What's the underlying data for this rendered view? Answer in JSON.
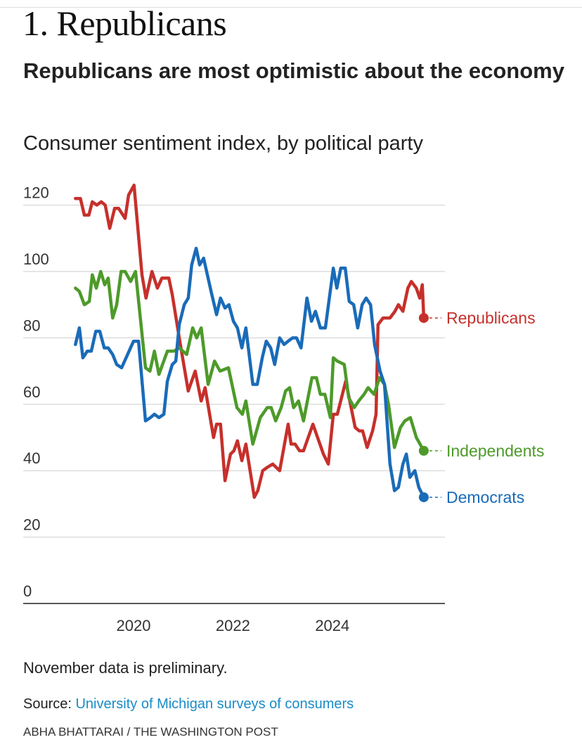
{
  "header": {
    "title": "1. Republicans",
    "headline": "Republicans are most optimistic about the economy"
  },
  "chart_data": {
    "type": "line",
    "title": "Consumer sentiment index, by political party",
    "xlabel": "",
    "ylabel": "",
    "ylim": [
      0,
      120
    ],
    "yticks": [
      "0",
      "20",
      "40",
      "60",
      "80",
      "100",
      "120"
    ],
    "xticks": [
      "2020",
      "2022",
      "2024"
    ],
    "grid": true,
    "series": [
      {
        "name": "Republicans",
        "color": "#c6302b",
        "points": [
          [
            2018.83,
            122
          ],
          [
            2018.93,
            122
          ],
          [
            2019.01,
            117
          ],
          [
            2019.1,
            117
          ],
          [
            2019.17,
            121
          ],
          [
            2019.26,
            120
          ],
          [
            2019.35,
            121
          ],
          [
            2019.43,
            120
          ],
          [
            2019.52,
            113
          ],
          [
            2019.62,
            119
          ],
          [
            2019.7,
            119
          ],
          [
            2019.83,
            116
          ],
          [
            2019.9,
            123
          ],
          [
            2020.01,
            126
          ],
          [
            2020.17,
            99
          ],
          [
            2020.25,
            92
          ],
          [
            2020.37,
            100
          ],
          [
            2020.48,
            95
          ],
          [
            2020.57,
            98
          ],
          [
            2020.71,
            98
          ],
          [
            2020.78,
            93
          ],
          [
            2020.93,
            79
          ],
          [
            2021.1,
            64
          ],
          [
            2021.24,
            70
          ],
          [
            2021.36,
            61
          ],
          [
            2021.44,
            65
          ],
          [
            2021.61,
            50
          ],
          [
            2021.67,
            54
          ],
          [
            2021.75,
            54
          ],
          [
            2021.84,
            37
          ],
          [
            2021.95,
            45
          ],
          [
            2022.02,
            46
          ],
          [
            2022.09,
            49
          ],
          [
            2022.18,
            43
          ],
          [
            2022.26,
            48
          ],
          [
            2022.43,
            32
          ],
          [
            2022.5,
            34
          ],
          [
            2022.6,
            40
          ],
          [
            2022.69,
            41
          ],
          [
            2022.8,
            42
          ],
          [
            2022.94,
            40
          ],
          [
            2023.11,
            54
          ],
          [
            2023.17,
            48
          ],
          [
            2023.25,
            48
          ],
          [
            2023.34,
            46
          ],
          [
            2023.42,
            46
          ],
          [
            2023.61,
            54
          ],
          [
            2023.82,
            45
          ],
          [
            2023.92,
            42
          ],
          [
            2024.02,
            57
          ],
          [
            2024.1,
            57
          ],
          [
            2024.27,
            67
          ],
          [
            2024.46,
            53
          ],
          [
            2024.54,
            52
          ],
          [
            2024.61,
            52
          ],
          [
            2024.7,
            47
          ],
          [
            2024.81,
            52
          ],
          [
            2024.88,
            57
          ],
          [
            2024.92,
            84
          ],
          [
            2025.02,
            86
          ],
          [
            2025.16,
            86
          ],
          [
            2025.26,
            88
          ],
          [
            2025.33,
            90
          ],
          [
            2025.42,
            88
          ],
          [
            2025.52,
            95
          ],
          [
            2025.59,
            97
          ],
          [
            2025.69,
            95
          ],
          [
            2025.76,
            92
          ],
          [
            2025.81,
            96
          ],
          [
            2025.84,
            86
          ]
        ]
      },
      {
        "name": "Independents",
        "color": "#4d9a2a",
        "points": [
          [
            2018.83,
            95
          ],
          [
            2018.91,
            94
          ],
          [
            2019.01,
            90
          ],
          [
            2019.11,
            91
          ],
          [
            2019.17,
            99
          ],
          [
            2019.25,
            95
          ],
          [
            2019.34,
            100
          ],
          [
            2019.42,
            96
          ],
          [
            2019.49,
            98
          ],
          [
            2019.58,
            86
          ],
          [
            2019.66,
            90
          ],
          [
            2019.75,
            100
          ],
          [
            2019.83,
            100
          ],
          [
            2019.94,
            97
          ],
          [
            2020.04,
            100
          ],
          [
            2020.24,
            71
          ],
          [
            2020.33,
            70
          ],
          [
            2020.42,
            76
          ],
          [
            2020.51,
            69
          ],
          [
            2020.68,
            76
          ],
          [
            2020.81,
            76
          ],
          [
            2020.92,
            77
          ],
          [
            2021.07,
            75
          ],
          [
            2021.19,
            83
          ],
          [
            2021.27,
            80
          ],
          [
            2021.36,
            83
          ],
          [
            2021.5,
            66
          ],
          [
            2021.63,
            73
          ],
          [
            2021.74,
            70
          ],
          [
            2021.91,
            71
          ],
          [
            2022.08,
            59
          ],
          [
            2022.19,
            57
          ],
          [
            2022.26,
            61
          ],
          [
            2022.4,
            48
          ],
          [
            2022.55,
            56
          ],
          [
            2022.69,
            59
          ],
          [
            2022.77,
            59
          ],
          [
            2022.86,
            55
          ],
          [
            2022.97,
            59
          ],
          [
            2023.06,
            64
          ],
          [
            2023.14,
            65
          ],
          [
            2023.22,
            59
          ],
          [
            2023.32,
            61
          ],
          [
            2023.42,
            55
          ],
          [
            2023.51,
            62
          ],
          [
            2023.59,
            68
          ],
          [
            2023.68,
            68
          ],
          [
            2023.76,
            63
          ],
          [
            2023.85,
            63
          ],
          [
            2023.96,
            56
          ],
          [
            2024.02,
            74
          ],
          [
            2024.1,
            73
          ],
          [
            2024.24,
            72
          ],
          [
            2024.33,
            62
          ],
          [
            2024.44,
            59
          ],
          [
            2024.53,
            61
          ],
          [
            2024.64,
            63
          ],
          [
            2024.72,
            65
          ],
          [
            2024.84,
            63
          ],
          [
            2024.95,
            68
          ],
          [
            2025.05,
            66
          ],
          [
            2025.13,
            60
          ],
          [
            2025.25,
            47
          ],
          [
            2025.37,
            53
          ],
          [
            2025.46,
            55
          ],
          [
            2025.57,
            56
          ],
          [
            2025.69,
            50
          ],
          [
            2025.84,
            46
          ]
        ]
      },
      {
        "name": "Democrats",
        "color": "#1a6bb8",
        "points": [
          [
            2018.83,
            78
          ],
          [
            2018.91,
            83
          ],
          [
            2018.98,
            74
          ],
          [
            2019.07,
            76
          ],
          [
            2019.15,
            76
          ],
          [
            2019.24,
            82
          ],
          [
            2019.32,
            82
          ],
          [
            2019.41,
            77
          ],
          [
            2019.49,
            77
          ],
          [
            2019.58,
            75
          ],
          [
            2019.66,
            72
          ],
          [
            2019.76,
            71
          ],
          [
            2020.0,
            79
          ],
          [
            2020.1,
            79
          ],
          [
            2020.24,
            55
          ],
          [
            2020.34,
            56
          ],
          [
            2020.42,
            57
          ],
          [
            2020.51,
            56
          ],
          [
            2020.61,
            57
          ],
          [
            2020.68,
            67
          ],
          [
            2020.78,
            72
          ],
          [
            2020.85,
            73
          ],
          [
            2020.92,
            84
          ],
          [
            2021.02,
            90
          ],
          [
            2021.1,
            92
          ],
          [
            2021.17,
            102
          ],
          [
            2021.26,
            107
          ],
          [
            2021.33,
            102
          ],
          [
            2021.41,
            104
          ],
          [
            2021.56,
            94
          ],
          [
            2021.67,
            87
          ],
          [
            2021.75,
            92
          ],
          [
            2021.84,
            89
          ],
          [
            2021.92,
            90
          ],
          [
            2022.01,
            85
          ],
          [
            2022.09,
            83
          ],
          [
            2022.18,
            77
          ],
          [
            2022.26,
            83
          ],
          [
            2022.4,
            66
          ],
          [
            2022.49,
            66
          ],
          [
            2022.59,
            74
          ],
          [
            2022.67,
            79
          ],
          [
            2022.76,
            77
          ],
          [
            2022.84,
            72
          ],
          [
            2022.94,
            80
          ],
          [
            2023.03,
            78
          ],
          [
            2023.11,
            79
          ],
          [
            2023.2,
            80
          ],
          [
            2023.28,
            80
          ],
          [
            2023.37,
            77
          ],
          [
            2023.49,
            92
          ],
          [
            2023.58,
            85
          ],
          [
            2023.66,
            88
          ],
          [
            2023.76,
            83
          ],
          [
            2023.86,
            83
          ],
          [
            2024.02,
            101
          ],
          [
            2024.09,
            95
          ],
          [
            2024.17,
            101
          ],
          [
            2024.26,
            101
          ],
          [
            2024.34,
            91
          ],
          [
            2024.43,
            90
          ],
          [
            2024.51,
            83
          ],
          [
            2024.6,
            90
          ],
          [
            2024.68,
            92
          ],
          [
            2024.77,
            90
          ],
          [
            2024.85,
            78
          ],
          [
            2024.96,
            70
          ],
          [
            2025.05,
            66
          ],
          [
            2025.16,
            42
          ],
          [
            2025.25,
            34
          ],
          [
            2025.33,
            35
          ],
          [
            2025.42,
            42
          ],
          [
            2025.49,
            45
          ],
          [
            2025.56,
            38
          ],
          [
            2025.66,
            40
          ],
          [
            2025.74,
            35
          ],
          [
            2025.84,
            32
          ]
        ]
      }
    ]
  },
  "footer": {
    "note": "November data is preliminary.",
    "source_label": "Source: ",
    "source_link": "University of Michigan surveys of consumers",
    "credit": "ABHA BHATTARAI / THE WASHINGTON POST"
  }
}
